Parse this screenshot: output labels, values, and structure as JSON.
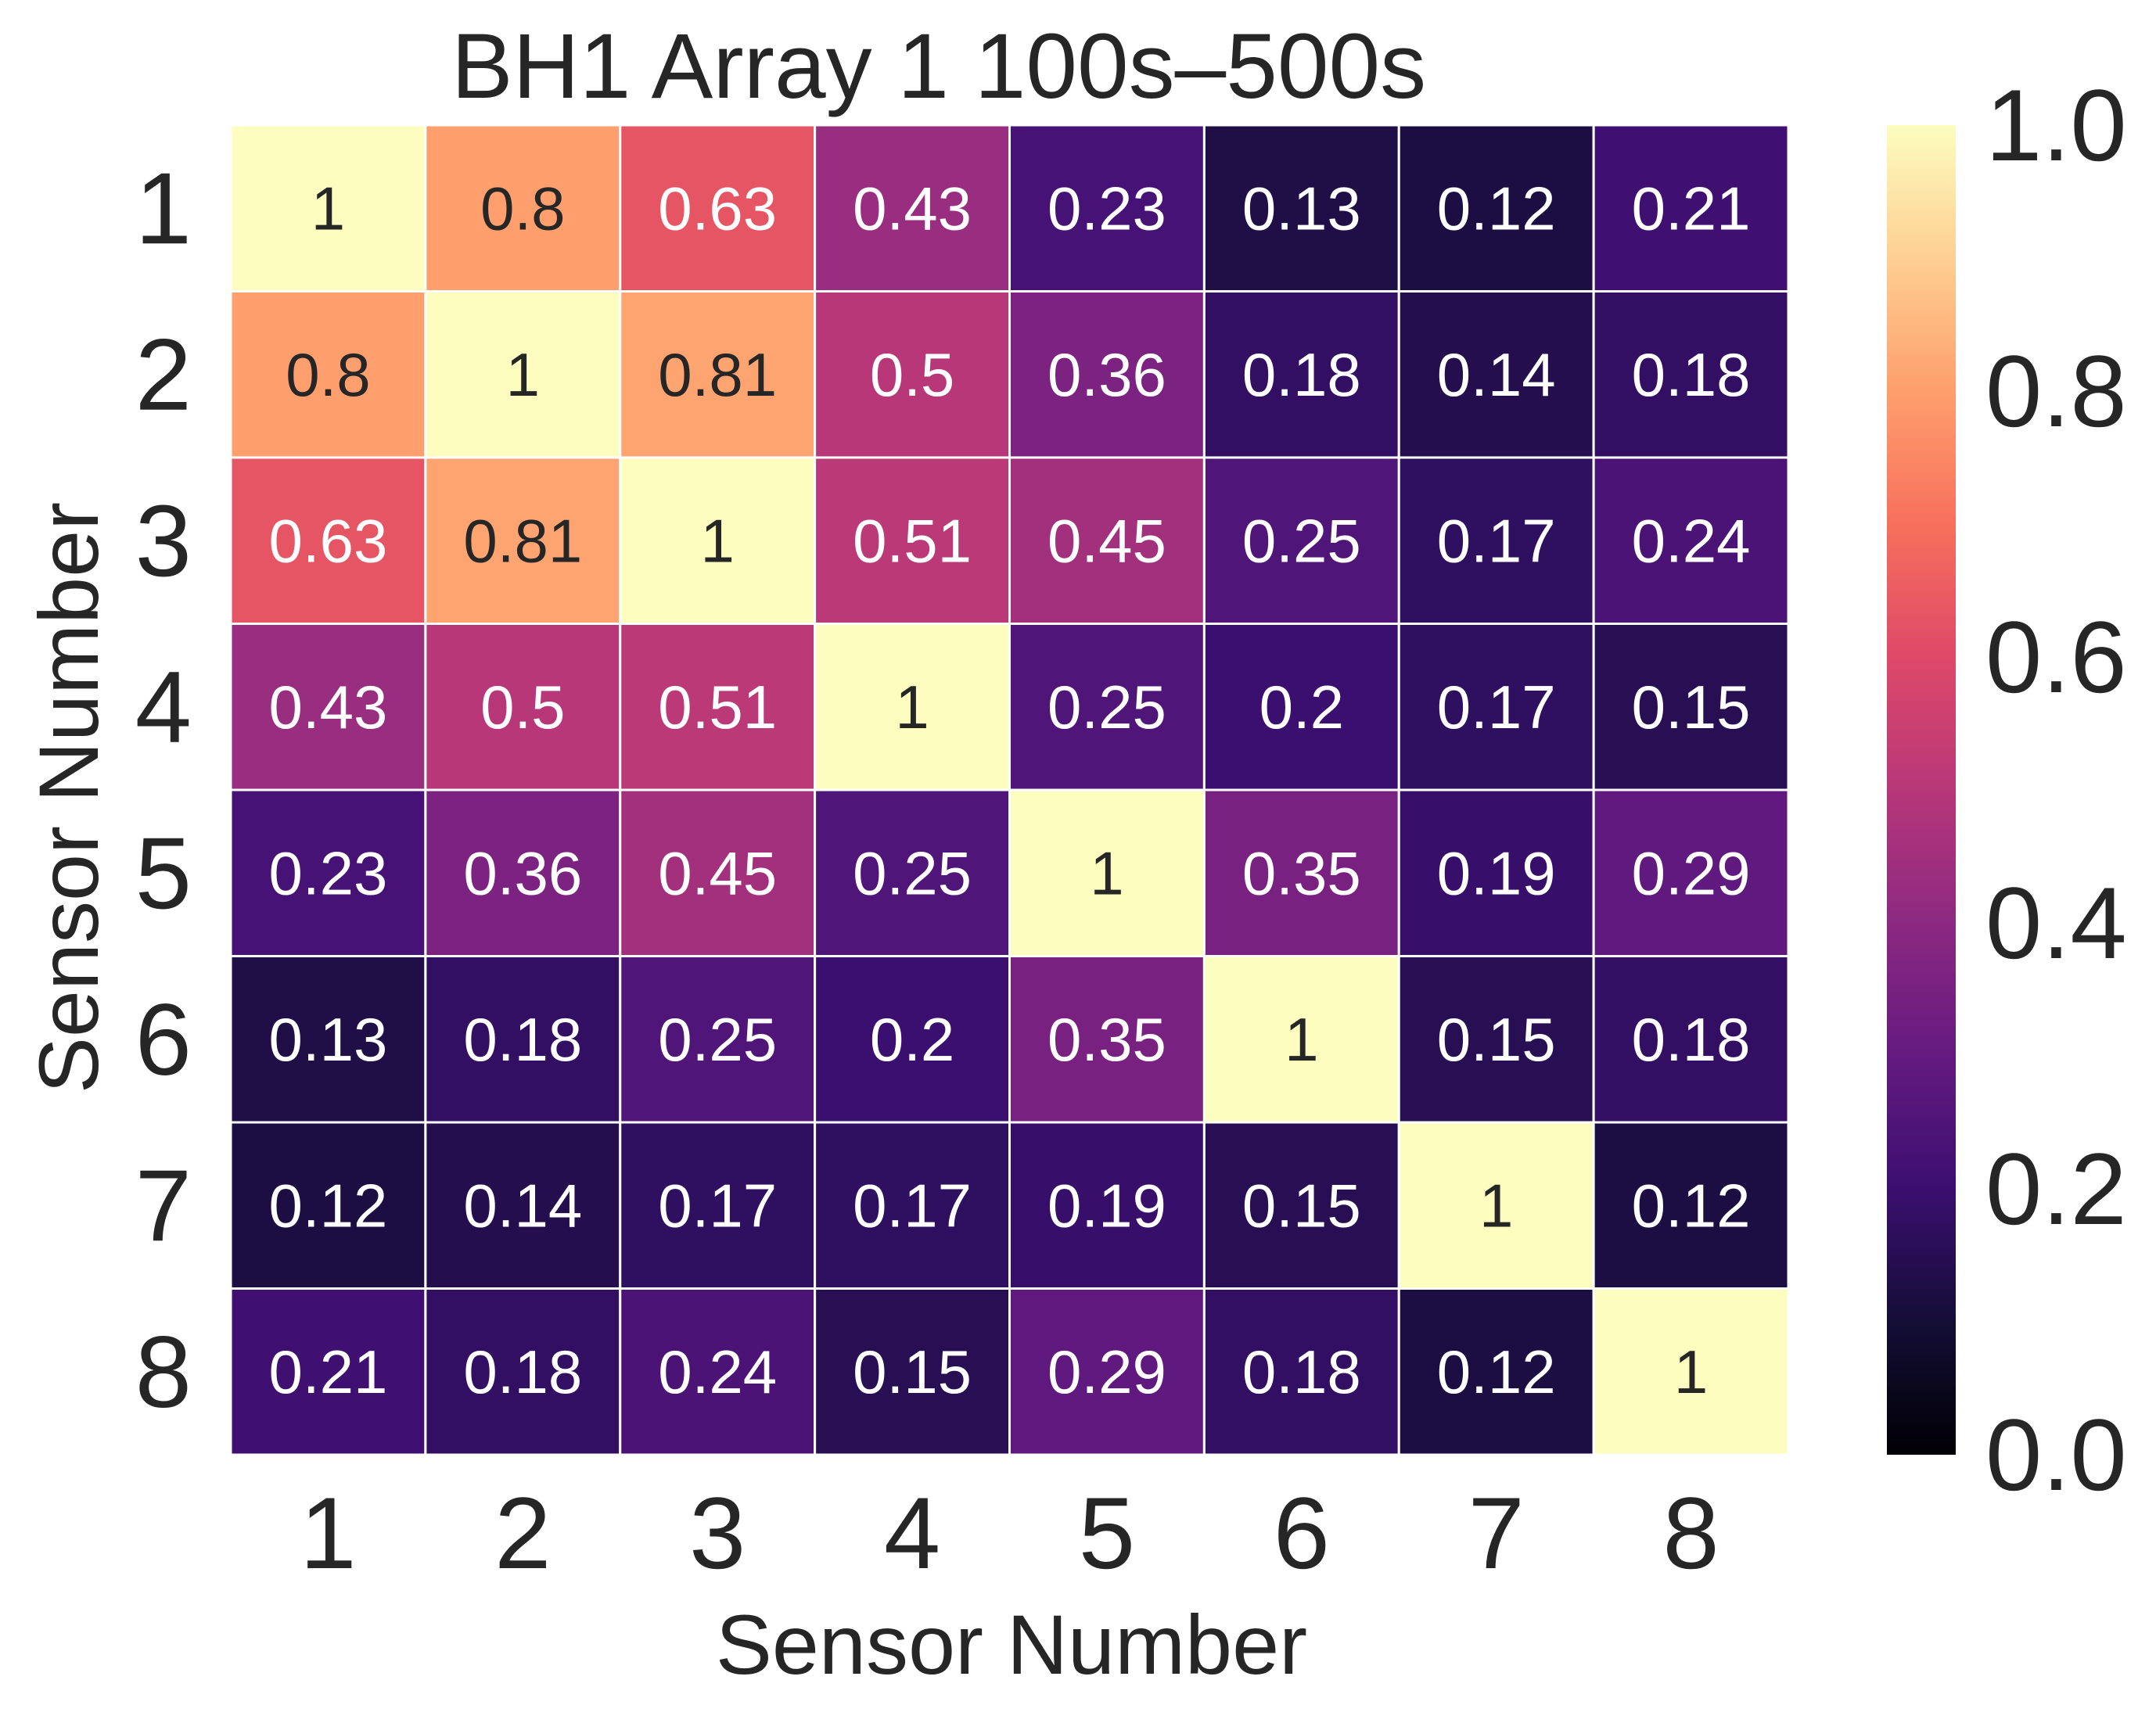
{
  "chart_data": {
    "type": "heatmap",
    "title": "BH1 Array 1 100s–500s",
    "xlabel": "Sensor Number",
    "ylabel": "Sensor Number",
    "x_categories": [
      "1",
      "2",
      "3",
      "4",
      "5",
      "6",
      "7",
      "8"
    ],
    "y_categories": [
      "1",
      "2",
      "3",
      "4",
      "5",
      "6",
      "7",
      "8"
    ],
    "values": [
      [
        1,
        0.8,
        0.63,
        0.43,
        0.23,
        0.13,
        0.12,
        0.21
      ],
      [
        0.8,
        1,
        0.81,
        0.5,
        0.36,
        0.18,
        0.14,
        0.18
      ],
      [
        0.63,
        0.81,
        1,
        0.51,
        0.45,
        0.25,
        0.17,
        0.24
      ],
      [
        0.43,
        0.5,
        0.51,
        1,
        0.25,
        0.2,
        0.17,
        0.15
      ],
      [
        0.23,
        0.36,
        0.45,
        0.25,
        1,
        0.35,
        0.19,
        0.29
      ],
      [
        0.13,
        0.18,
        0.25,
        0.2,
        0.35,
        1,
        0.15,
        0.18
      ],
      [
        0.12,
        0.14,
        0.17,
        0.17,
        0.19,
        0.15,
        1,
        0.12
      ],
      [
        0.21,
        0.18,
        0.24,
        0.15,
        0.29,
        0.18,
        0.12,
        1
      ]
    ],
    "value_labels": [
      [
        "1",
        "0.8",
        "0.63",
        "0.43",
        "0.23",
        "0.13",
        "0.12",
        "0.21"
      ],
      [
        "0.8",
        "1",
        "0.81",
        "0.5",
        "0.36",
        "0.18",
        "0.14",
        "0.18"
      ],
      [
        "0.63",
        "0.81",
        "1",
        "0.51",
        "0.45",
        "0.25",
        "0.17",
        "0.24"
      ],
      [
        "0.43",
        "0.5",
        "0.51",
        "1",
        "0.25",
        "0.2",
        "0.17",
        "0.15"
      ],
      [
        "0.23",
        "0.36",
        "0.45",
        "0.25",
        "1",
        "0.35",
        "0.19",
        "0.29"
      ],
      [
        "0.13",
        "0.18",
        "0.25",
        "0.2",
        "0.35",
        "1",
        "0.15",
        "0.18"
      ],
      [
        "0.12",
        "0.14",
        "0.17",
        "0.17",
        "0.19",
        "0.15",
        "1",
        "0.12"
      ],
      [
        "0.21",
        "0.18",
        "0.24",
        "0.15",
        "0.29",
        "0.18",
        "0.12",
        "1"
      ]
    ],
    "colormap": "magma",
    "vmin": 0.0,
    "vmax": 1.0,
    "colorbar_ticks": [
      "0.0",
      "0.2",
      "0.4",
      "0.6",
      "0.8",
      "1.0"
    ],
    "colorbar_tick_values": [
      0.0,
      0.2,
      0.4,
      0.6,
      0.8,
      1.0
    ],
    "colors": {
      "text_dark": "#262626",
      "text_light": "#ffffff",
      "cell_border": "#ffffff",
      "background": "#ffffff"
    }
  }
}
